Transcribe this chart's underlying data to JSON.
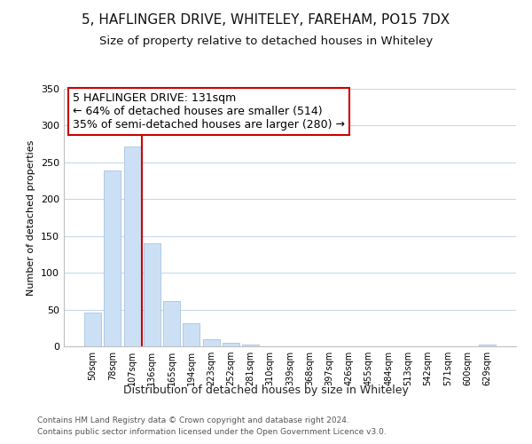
{
  "title": "5, HAFLINGER DRIVE, WHITELEY, FAREHAM, PO15 7DX",
  "subtitle": "Size of property relative to detached houses in Whiteley",
  "xlabel": "Distribution of detached houses by size in Whiteley",
  "ylabel": "Number of detached properties",
  "bar_labels": [
    "50sqm",
    "78sqm",
    "107sqm",
    "136sqm",
    "165sqm",
    "194sqm",
    "223sqm",
    "252sqm",
    "281sqm",
    "310sqm",
    "339sqm",
    "368sqm",
    "397sqm",
    "426sqm",
    "455sqm",
    "484sqm",
    "513sqm",
    "542sqm",
    "571sqm",
    "600sqm",
    "629sqm"
  ],
  "bar_values": [
    46,
    239,
    272,
    140,
    61,
    31,
    10,
    5,
    2,
    0,
    0,
    0,
    0,
    0,
    0,
    0,
    0,
    0,
    0,
    0,
    2
  ],
  "bar_color": "#cce0f5",
  "bar_edge_color": "#a8c4e0",
  "vline_x": 2.5,
  "vline_color": "#cc0000",
  "annotation_title": "5 HAFLINGER DRIVE: 131sqm",
  "annotation_line1": "← 64% of detached houses are smaller (514)",
  "annotation_line2": "35% of semi-detached houses are larger (280) →",
  "ylim": [
    0,
    350
  ],
  "yticks": [
    0,
    50,
    100,
    150,
    200,
    250,
    300,
    350
  ],
  "footer1": "Contains HM Land Registry data © Crown copyright and database right 2024.",
  "footer2": "Contains public sector information licensed under the Open Government Licence v3.0.",
  "bg_color": "#ffffff",
  "grid_color": "#c8d8ec",
  "title_fontsize": 11,
  "subtitle_fontsize": 9.5,
  "annotation_fontsize": 9
}
